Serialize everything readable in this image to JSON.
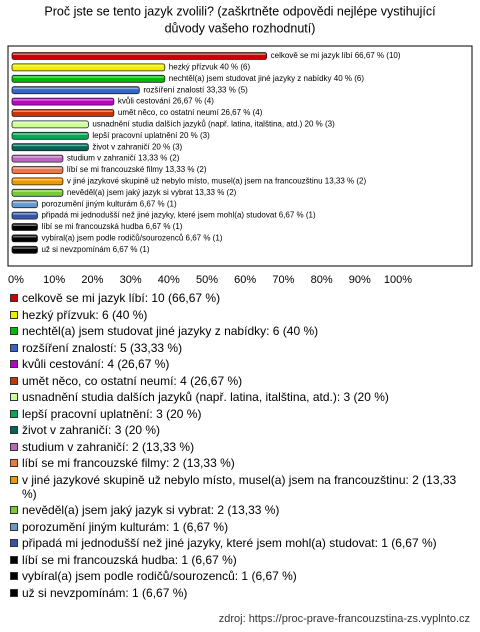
{
  "chart_data": {
    "type": "bar",
    "orientation": "horizontal",
    "title": [
      "Proč jste se tento jazyk zvolili? (zaškrtněte odpovědi nejlépe vystihující",
      "důvody vašeho rozhodnutí)"
    ],
    "categories": [
      "celkově se mi jazyk líbí",
      "hezký přízvuk",
      "nechtěl(a) jsem studovat jiné jazyky z nabídky",
      "rozšíření znalostí",
      "kvůli cestování",
      "umět něco, co ostatní neumí",
      "usnadnění studia dalších jazyků (např. latina, italština, atd.)",
      "lepší pracovní uplatnění",
      "život v zahraničí",
      "studium v zahraničí",
      "líbí se mi francouzské filmy",
      "v jiné jazykové skupině už nebylo místo, musel(a) jsem na francouzštinu",
      "nevěděl(a) jsem jaký jazyk si vybrat",
      "porozumění jiným kulturám",
      "připadá mi jednodušší než jiné jazyky, které jsem mohl(a) studovat",
      "líbí se mi francouzská hudba",
      "vybíral(a) jsem podle rodičů/sourozenců",
      "už si nevzpomínám"
    ],
    "values": [
      66.67,
      40,
      40,
      33.33,
      26.67,
      26.67,
      20,
      20,
      20,
      13.33,
      13.33,
      13.33,
      13.33,
      6.67,
      6.67,
      6.67,
      6.67,
      6.67
    ],
    "value_labels": [
      "celkově se mi jazyk líbí 66,67 % (10)",
      "hezký přízvuk 40 % (6)",
      "nechtěl(a) jsem studovat jiné jazyky z nabídky 40 % (6)",
      "rozšíření znalostí 33,33 % (5)",
      "kvůli cestování 26,67 % (4)",
      "umět něco, co ostatní neumí 26,67 % (4)",
      "usnadnění studia dalších jazyků (např. latina, italština, atd.) 20 % (3)",
      "lepší pracovní uplatnění 20 % (3)",
      "život v zahraničí 20 % (3)",
      "studium v zahraničí 13,33 % (2)",
      "líbí se mi francouzské filmy 13,33 % (2)",
      "v jiné jazykové skupině už nebylo místo, musel(a) jsem na francouzštinu 13,33 % (2)",
      "nevěděl(a) jsem jaký jazyk si vybrat 13,33 % (2)",
      "porozumění jiným kulturám 6,67 % (1)",
      "připadá mi jednodušší než jiné jazyky, které jsem mohl(a) studovat 6,67 % (1)",
      "líbí se mi francouzská hudba 6,67 % (1)",
      "vybíral(a) jsem podle rodičů/sourozenců 6,67 % (1)",
      "už si nevzpomínám 6,67 % (1)"
    ],
    "legend_labels": [
      "celkově se mi jazyk líbí: 10 (66,67 %)",
      "hezký přízvuk: 6 (40 %)",
      "nechtěl(a) jsem studovat jiné jazyky z nabídky: 6 (40 %)",
      "rozšíření znalostí: 5 (33,33 %)",
      "kvůli cestování: 4 (26,67 %)",
      "umět něco, co ostatní neumí: 4 (26,67 %)",
      "usnadnění studia dalších jazyků (např. latina, italština, atd.): 3 (20 %)",
      "lepší pracovní uplatnění: 3 (20 %)",
      "život v zahraničí: 3 (20 %)",
      "studium v zahraničí: 2 (13,33 %)",
      "líbí se mi francouzské filmy: 2 (13,33 %)",
      "v jiné jazykové skupině už nebylo místo, musel(a) jsem na francouzštinu: 2 (13,33 %)",
      "nevěděl(a) jsem jaký jazyk si vybrat: 2 (13,33 %)",
      "porozumění jiným kulturám: 1 (6,67 %)",
      "připadá mi jednodušší než jiné jazyky, které jsem mohl(a) studovat: 1 (6,67 %)",
      "líbí se mi francouzská hudba: 1 (6,67 %)",
      "vybíral(a) jsem podle rodičů/sourozenců: 1 (6,67 %)",
      "už si nevzpomínám: 1 (6,67 %)"
    ],
    "colors": [
      "#cc0000",
      "#eeee00",
      "#00bb00",
      "#3366cc",
      "#bb00cc",
      "#cc3300",
      "#ccff99",
      "#00aa55",
      "#006655",
      "#bb66bb",
      "#ee7744",
      "#ee9900",
      "#77cc33",
      "#6699cc",
      "#3355aa",
      "#000000",
      "#000000",
      "#000000"
    ],
    "xlim": [
      0,
      100
    ],
    "xticks": [
      {
        "value": 0,
        "label": "0%"
      },
      {
        "value": 10,
        "label": "10%"
      },
      {
        "value": 20,
        "label": "20%"
      },
      {
        "value": 30,
        "label": "30%"
      },
      {
        "value": 40,
        "label": "40%"
      },
      {
        "value": 50,
        "label": "50%"
      },
      {
        "value": 60,
        "label": "60%"
      },
      {
        "value": 70,
        "label": "70%"
      },
      {
        "value": 80,
        "label": "80%"
      },
      {
        "value": 90,
        "label": "90%"
      },
      {
        "value": 100,
        "label": "100%"
      }
    ],
    "grid": false,
    "source": "zdroj: https://proc-prave-francouzstina-zs.vyplnto.cz"
  }
}
